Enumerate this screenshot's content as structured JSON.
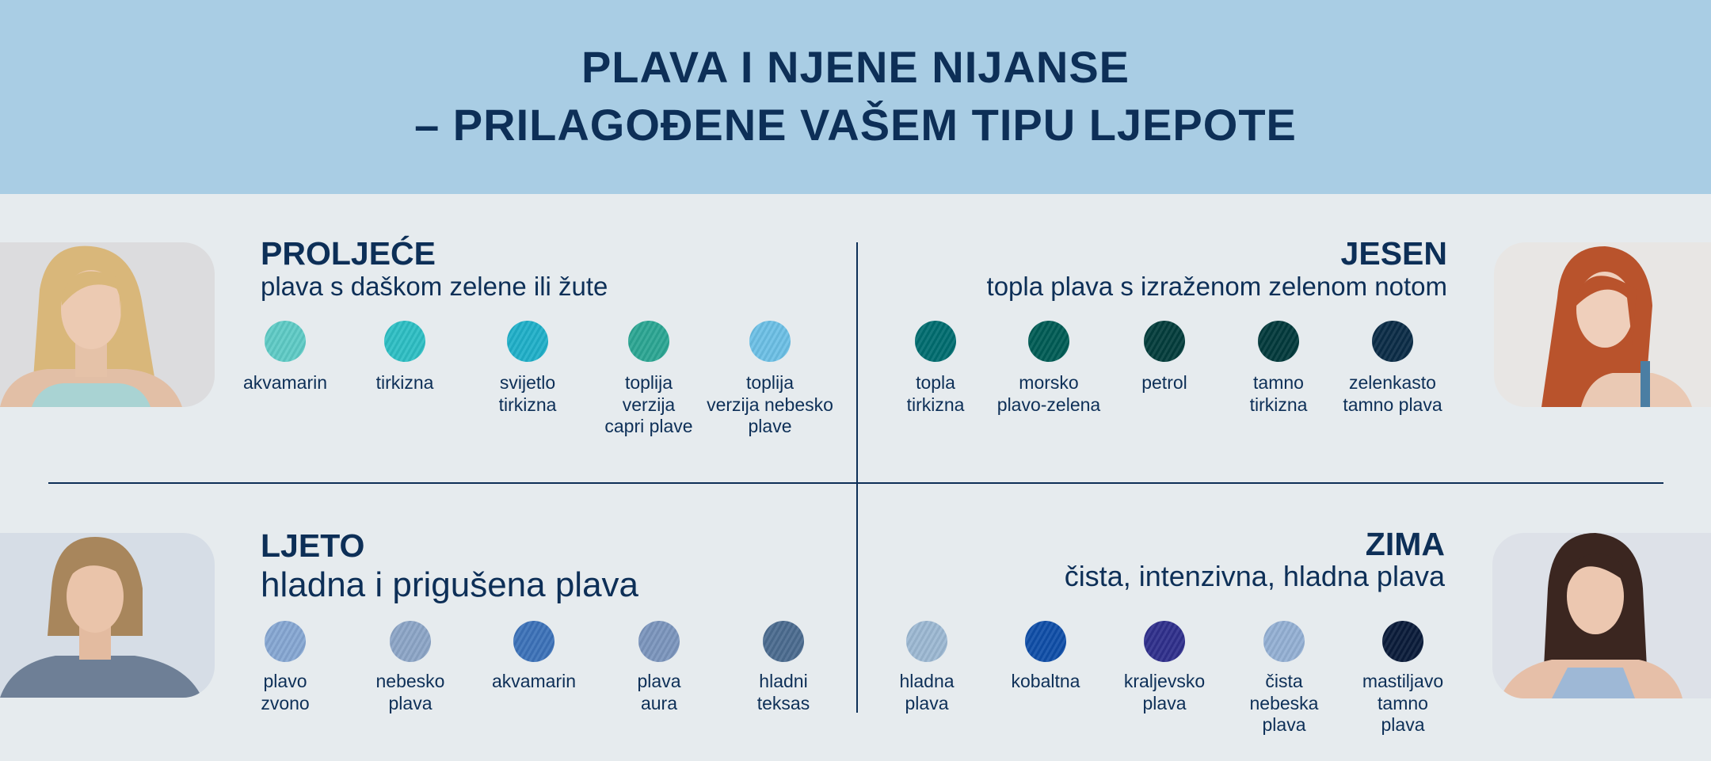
{
  "header": {
    "title_lines": [
      "PLAVA I NJENE NIJANSE",
      "– PRILAGOĐENE VAŠEM TIPU LJEPOTE"
    ]
  },
  "sections": [
    {
      "title": "PROLJEĆE",
      "subtitle": "plava s daškom zelene ili žute",
      "swatches": [
        {
          "color": "#5ecbc6",
          "label": "akvamarin"
        },
        {
          "color": "#2dbfc4",
          "label": "tirkizna"
        },
        {
          "color": "#1fb0c9",
          "label": "svijetlo\ntirkizna"
        },
        {
          "color": "#2ba693",
          "label": "toplija\nverzija\ncapri plave"
        },
        {
          "color": "#6cc0e6",
          "label": "toplija\nverzija nebesko\nplave"
        }
      ]
    },
    {
      "title": "JESEN",
      "subtitle": "topla plava s izraženom zelenom notom",
      "swatches": [
        {
          "color": "#006d70",
          "label": "topla\ntirkizna"
        },
        {
          "color": "#005c55",
          "label": "morsko\nplavo-zelena"
        },
        {
          "color": "#033d3c",
          "label": "petrol"
        },
        {
          "color": "#023a3c",
          "label": "tamno\ntirkizna"
        },
        {
          "color": "#0b2c47",
          "label": "zelenkasto\ntamno plava"
        }
      ]
    },
    {
      "title": "LJETO",
      "subtitle": "hladna i prigušena plava",
      "swatches": [
        {
          "color": "#86a7d3",
          "label": "plavo\nzvono"
        },
        {
          "color": "#8ca5c7",
          "label": "nebesko\nplava"
        },
        {
          "color": "#3c72b9",
          "label": "akvamarin"
        },
        {
          "color": "#7b95bd",
          "label": "plava\naura"
        },
        {
          "color": "#4b6b8f",
          "label": "hladni\nteksas"
        }
      ]
    },
    {
      "title": "ZIMA",
      "subtitle": "čista, intenzivna, hladna plava",
      "swatches": [
        {
          "color": "#9cb8d3",
          "label": "hladna\nplava"
        },
        {
          "color": "#0f4ea8",
          "label": "kobaltna"
        },
        {
          "color": "#2f2f8c",
          "label": "kraljevsko\nplava"
        },
        {
          "color": "#94b0d4",
          "label": "čista\nnebeska\nplava"
        },
        {
          "color": "#0a1b3a",
          "label": "mastiljavo\ntamno\nplava"
        }
      ]
    }
  ]
}
